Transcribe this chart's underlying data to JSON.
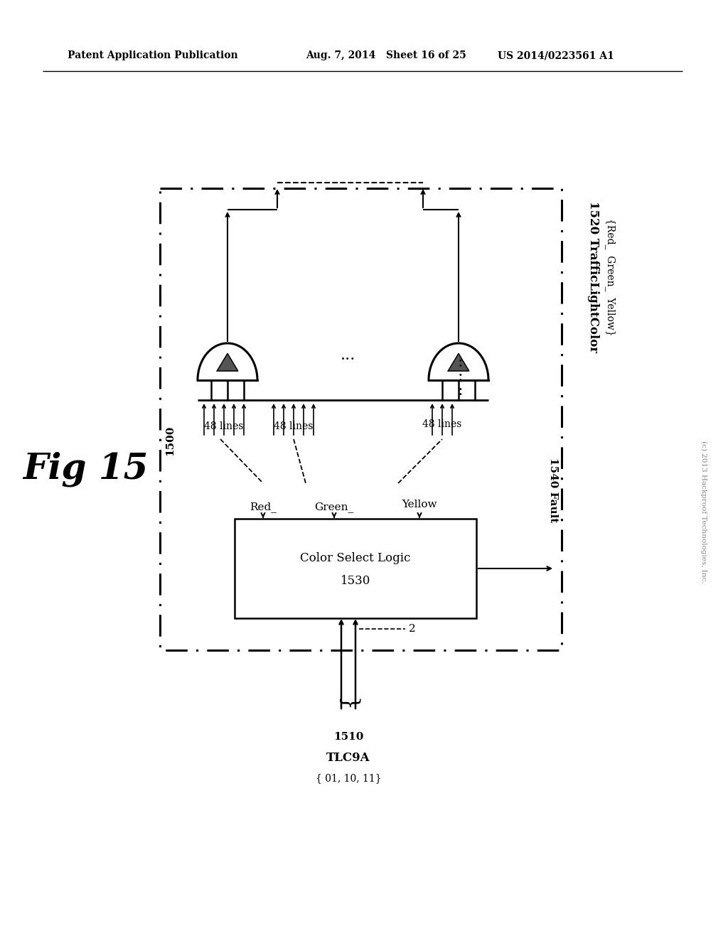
{
  "bg_color": "#ffffff",
  "text_color": "#000000",
  "header_left": "Patent Application Publication",
  "header_mid": "Aug. 7, 2014   Sheet 16 of 25",
  "header_right": "US 2014/0223561 A1",
  "fig_label": "Fig 15",
  "csl_label1": "Color Select Logic",
  "csl_label2": "1530",
  "label_1500": "1500",
  "label_1510": "1510",
  "label_tlc9a": "TLC9A",
  "label_tlc9a_vals": "{ 01, 10, 11}",
  "label_1520_line1": "1520 TrafficLightColor",
  "label_1520_line2": "{Red_  Green_  Yellow}",
  "label_1540": "1540 Fault",
  "label_red": "Red_",
  "label_green": "Green_",
  "label_yellow": "Yellow",
  "label_48_1": "48 lines",
  "label_48_2": "48 lines",
  "label_48_3": "48 lines",
  "label_2": "2",
  "copyright": "(c) 2013 Hackproof Technologies, Inc."
}
